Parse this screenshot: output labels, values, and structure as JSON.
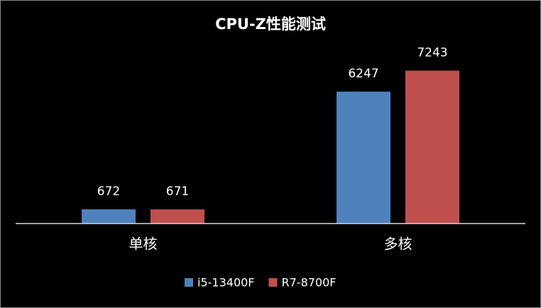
{
  "chart_data": {
    "type": "bar",
    "title": "CPU-Z性能测试",
    "categories": [
      "单核",
      "多核"
    ],
    "series": [
      {
        "name": "i5-13400F",
        "color": "#4f81bd",
        "values": [
          672,
          6247
        ]
      },
      {
        "name": "R7-8700F",
        "color": "#c0504d",
        "values": [
          671,
          7243
        ]
      }
    ],
    "ylim": [
      0,
      8000
    ],
    "legend": "bottom"
  }
}
